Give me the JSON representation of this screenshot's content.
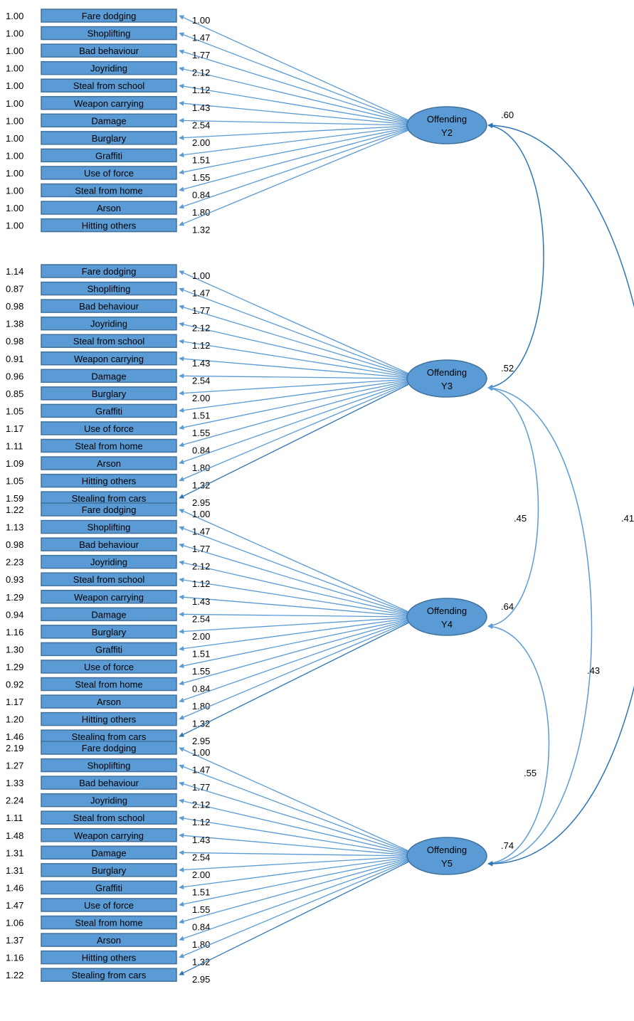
{
  "colors": {
    "box_fill": "#5b9bd5",
    "box_stroke": "#41719c",
    "arrow": "#5b9bd5",
    "arrow_dark": "#2e75b6",
    "text": "#000000"
  },
  "loadings": [
    "1.00",
    "1.47",
    "1.77",
    "2.12",
    "1.12",
    "1.43",
    "2.54",
    "2.00",
    "1.51",
    "1.55",
    "0.84",
    "1.80",
    "1.32",
    "2.95"
  ],
  "blocks": [
    {
      "factor_line1": "Offending",
      "factor_line2": "Y2",
      "variance": ".60",
      "items": [
        {
          "label": "Fare dodging",
          "residual": "1.00"
        },
        {
          "label": "Shoplifting",
          "residual": "1.00"
        },
        {
          "label": "Bad behaviour",
          "residual": "1.00"
        },
        {
          "label": "Joyriding",
          "residual": "1.00"
        },
        {
          "label": "Steal from school",
          "residual": "1.00"
        },
        {
          "label": "Weapon carrying",
          "residual": "1.00"
        },
        {
          "label": "Damage",
          "residual": "1.00"
        },
        {
          "label": "Burglary",
          "residual": "1.00"
        },
        {
          "label": "Graffiti",
          "residual": "1.00"
        },
        {
          "label": "Use of force",
          "residual": "1.00"
        },
        {
          "label": "Steal from home",
          "residual": "1.00"
        },
        {
          "label": "Arson",
          "residual": "1.00"
        },
        {
          "label": "Hitting others",
          "residual": "1.00"
        }
      ]
    },
    {
      "factor_line1": "Offending",
      "factor_line2": "Y3",
      "variance": ".52",
      "items": [
        {
          "label": "Fare dodging",
          "residual": "1.14"
        },
        {
          "label": "Shoplifting",
          "residual": "0.87"
        },
        {
          "label": "Bad behaviour",
          "residual": "0.98"
        },
        {
          "label": "Joyriding",
          "residual": "1.38"
        },
        {
          "label": "Steal from school",
          "residual": "0.98"
        },
        {
          "label": "Weapon carrying",
          "residual": "0.91"
        },
        {
          "label": "Damage",
          "residual": "0.96"
        },
        {
          "label": "Burglary",
          "residual": "0.85"
        },
        {
          "label": "Graffiti",
          "residual": "1.05"
        },
        {
          "label": "Use of force",
          "residual": "1.17"
        },
        {
          "label": "Steal from home",
          "residual": "1.11"
        },
        {
          "label": "Arson",
          "residual": "1.09"
        },
        {
          "label": "Hitting others",
          "residual": "1.05"
        },
        {
          "label": "Stealing from cars",
          "residual": "1.59"
        }
      ]
    },
    {
      "factor_line1": "Offending",
      "factor_line2": "Y4",
      "variance": ".64",
      "items": [
        {
          "label": "Fare dodging",
          "residual": "1.22"
        },
        {
          "label": "Shoplifting",
          "residual": "1.13"
        },
        {
          "label": "Bad behaviour",
          "residual": "0.98"
        },
        {
          "label": "Joyriding",
          "residual": "2.23"
        },
        {
          "label": "Steal from school",
          "residual": "0.93"
        },
        {
          "label": "Weapon carrying",
          "residual": "1.29"
        },
        {
          "label": "Damage",
          "residual": "0.94"
        },
        {
          "label": "Burglary",
          "residual": "1.16"
        },
        {
          "label": "Graffiti",
          "residual": "1.30"
        },
        {
          "label": "Use of force",
          "residual": "1.29"
        },
        {
          "label": "Steal from home",
          "residual": "0.92"
        },
        {
          "label": "Arson",
          "residual": "1.17"
        },
        {
          "label": "Hitting others",
          "residual": "1.20"
        },
        {
          "label": "Stealing from cars",
          "residual": "1.46"
        }
      ]
    },
    {
      "factor_line1": "Offending",
      "factor_line2": "Y5",
      "variance": ".74",
      "items": [
        {
          "label": "Fare dodging",
          "residual": "2.19"
        },
        {
          "label": "Shoplifting",
          "residual": "1.27"
        },
        {
          "label": "Bad behaviour",
          "residual": "1.33"
        },
        {
          "label": "Joyriding",
          "residual": "2.24"
        },
        {
          "label": "Steal from school",
          "residual": "1.11"
        },
        {
          "label": "Weapon carrying",
          "residual": "1.48"
        },
        {
          "label": "Damage",
          "residual": "1.31"
        },
        {
          "label": "Burglary",
          "residual": "1.31"
        },
        {
          "label": "Graffiti",
          "residual": "1.46"
        },
        {
          "label": "Use of force",
          "residual": "1.47"
        },
        {
          "label": "Steal from home",
          "residual": "1.06"
        },
        {
          "label": "Arson",
          "residual": "1.37"
        },
        {
          "label": "Hitting others",
          "residual": "1.16"
        },
        {
          "label": "Stealing from cars",
          "residual": "1.22"
        }
      ]
    }
  ],
  "correlations": [
    {
      "from": "Y2",
      "to": "Y3",
      "label": ""
    },
    {
      "from": "Y3",
      "to": "Y4",
      "label": ".45"
    },
    {
      "from": "Y4",
      "to": "Y5",
      "label": ".55"
    },
    {
      "from": "Y3",
      "to": "Y5",
      "label": ".43"
    },
    {
      "from": "Y2",
      "to": "Y5",
      "label": ".41"
    }
  ]
}
